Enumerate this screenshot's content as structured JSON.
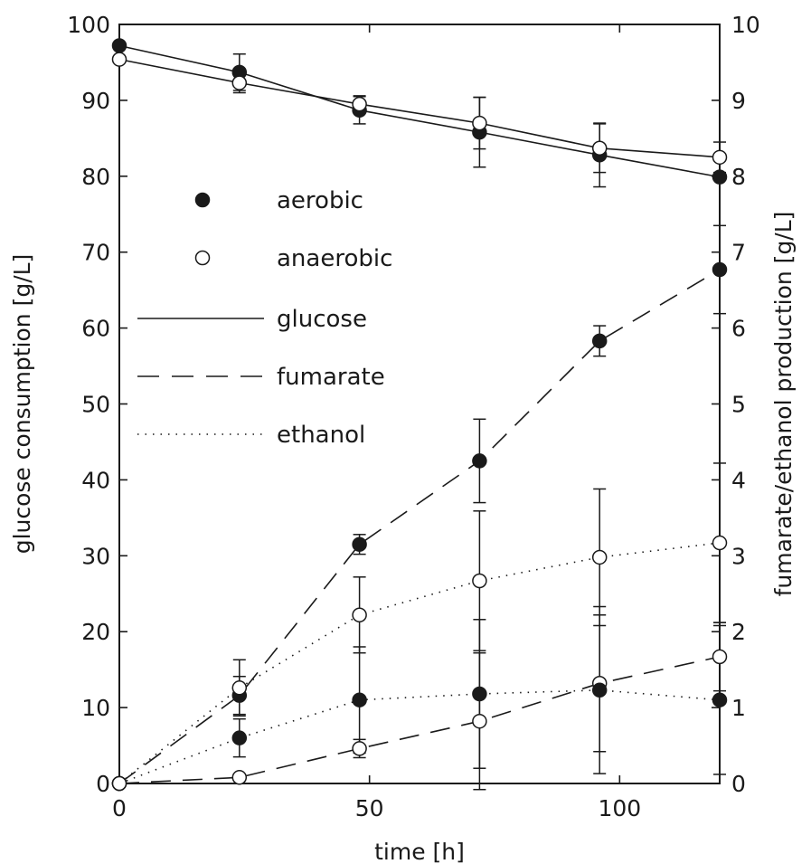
{
  "chart_data": {
    "type": "line",
    "xlabel": "time [h]",
    "ylabel_left": "glucose consumption [g/L]",
    "ylabel_right": "fumarate/ethanol production [g/L]",
    "xlim": [
      0,
      120
    ],
    "ylim_left": [
      0,
      100
    ],
    "ylim_right": [
      0,
      10
    ],
    "x_ticks": [
      "0",
      "50",
      "100"
    ],
    "x_tick_values": [
      0,
      50,
      100
    ],
    "y_left_ticks": [
      "0",
      "10",
      "20",
      "30",
      "40",
      "50",
      "60",
      "70",
      "80",
      "90",
      "100"
    ],
    "y_left_tick_values": [
      0,
      10,
      20,
      30,
      40,
      50,
      60,
      70,
      80,
      90,
      100
    ],
    "y_right_ticks": [
      "0",
      "1",
      "2",
      "3",
      "4",
      "5",
      "6",
      "7",
      "8",
      "9",
      "10"
    ],
    "y_right_tick_values": [
      0,
      1,
      2,
      3,
      4,
      5,
      6,
      7,
      8,
      9,
      10
    ],
    "grid": false,
    "legend_position": "center-left",
    "legend": [
      {
        "label": "aerobic",
        "kind": "marker",
        "marker": "filled"
      },
      {
        "label": "anaerobic",
        "kind": "marker",
        "marker": "open"
      },
      {
        "label": "glucose",
        "kind": "line",
        "dash": "solid"
      },
      {
        "label": "fumarate",
        "kind": "line",
        "dash": "dashed"
      },
      {
        "label": "ethanol",
        "kind": "line",
        "dash": "dotted"
      }
    ],
    "series": [
      {
        "condition": "aerobic",
        "quantity": "glucose",
        "axis": "left",
        "marker": "filled",
        "dash": "solid",
        "x": [
          0,
          24,
          48,
          72,
          96,
          120
        ],
        "y": [
          97.2,
          93.7,
          88.7,
          85.8,
          82.8,
          79.9
        ],
        "err": [
          0,
          2.4,
          1.8,
          4.6,
          4.2,
          0
        ]
      },
      {
        "condition": "anaerobic",
        "quantity": "glucose",
        "axis": "left",
        "marker": "open",
        "dash": "solid",
        "x": [
          0,
          24,
          48,
          72,
          96,
          120
        ],
        "y": [
          95.4,
          92.3,
          89.5,
          87.0,
          83.7,
          82.5
        ],
        "err": [
          0,
          1.3,
          1.1,
          3.4,
          3.2,
          2.0
        ]
      },
      {
        "condition": "aerobic",
        "quantity": "fumarate",
        "axis": "right",
        "marker": "filled",
        "dash": "dashed",
        "x": [
          0,
          24,
          48,
          72,
          96,
          120
        ],
        "y": [
          0,
          1.16,
          3.15,
          4.25,
          5.83,
          6.77
        ],
        "err": [
          0,
          0.25,
          0.13,
          0.55,
          0.2,
          0.58
        ]
      },
      {
        "condition": "anaerobic",
        "quantity": "fumarate",
        "axis": "right",
        "marker": "open",
        "dash": "dashed",
        "x": [
          0,
          24,
          48,
          72,
          96,
          120
        ],
        "y": [
          0,
          0.08,
          0.46,
          0.82,
          1.32,
          1.67
        ],
        "err": [
          0,
          0,
          0.12,
          0.9,
          0.9,
          0.45
        ]
      },
      {
        "condition": "aerobic",
        "quantity": "ethanol",
        "axis": "right",
        "marker": "filled",
        "dash": "dotted",
        "x": [
          0,
          24,
          48,
          72,
          96,
          120
        ],
        "y": [
          0,
          0.6,
          1.1,
          1.18,
          1.23,
          1.1
        ],
        "err": [
          0,
          0.25,
          0.7,
          0.98,
          1.1,
          0.98
        ]
      },
      {
        "condition": "anaerobic",
        "quantity": "ethanol",
        "axis": "right",
        "marker": "open",
        "dash": "dotted",
        "x": [
          0,
          24,
          48,
          72,
          96,
          120
        ],
        "y": [
          0,
          1.26,
          2.22,
          2.67,
          2.98,
          3.17
        ],
        "err": [
          0,
          0.37,
          0.5,
          0.92,
          0.9,
          1.05
        ]
      }
    ]
  }
}
